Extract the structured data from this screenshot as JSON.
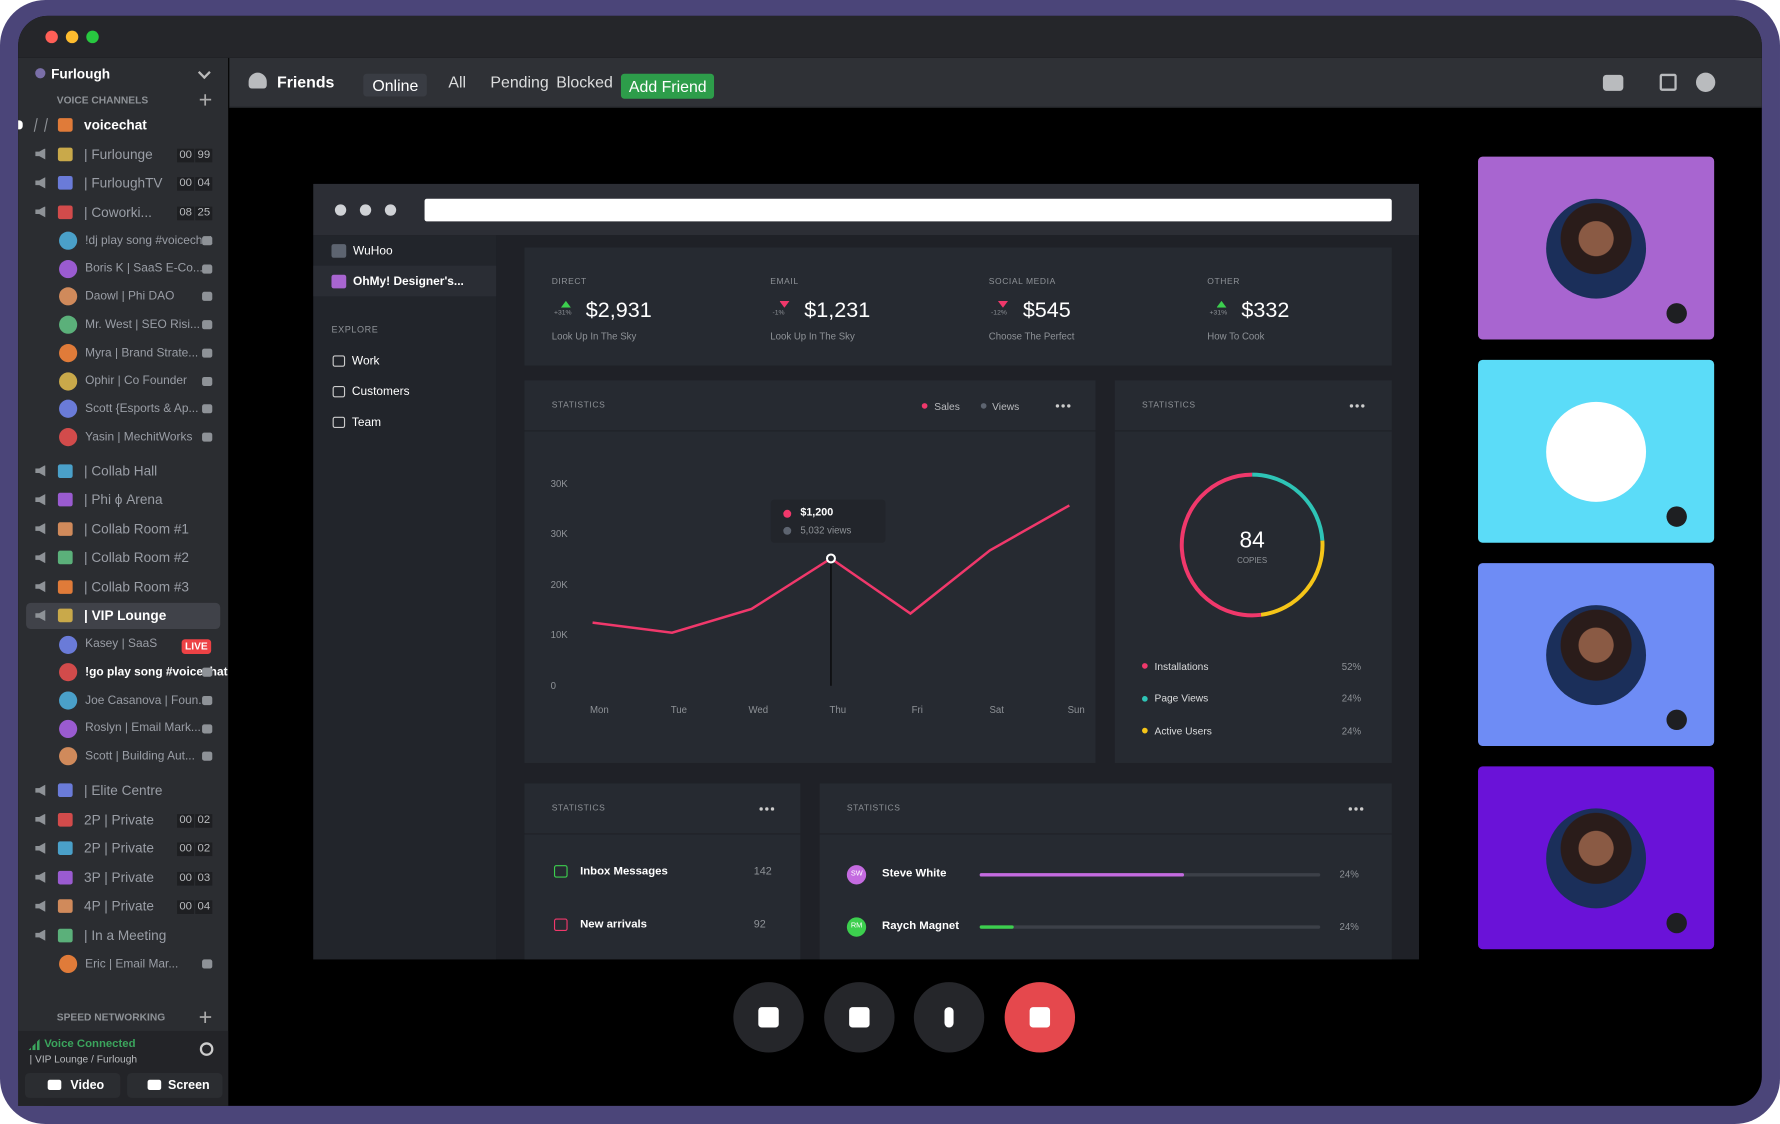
{
  "window": {
    "sidebar": {
      "server": "Furlough",
      "section": "VOICE CHANNELS",
      "groups": [
        [
          {
            "name": "voicechat",
            "text_channel": true
          },
          {
            "name": "| Furlounge",
            "counts": [
              "00",
              "99"
            ]
          },
          {
            "name": "| FurloughTV",
            "counts": [
              "00",
              "04"
            ]
          },
          {
            "name": "| Coworki...",
            "counts": [
              "08",
              "25"
            ],
            "members": [
              {
                "name": "!dj play song #voicechat"
              },
              {
                "name": "Boris K | SaaS E-Co..."
              },
              {
                "name": "Daowl | Phi DAO"
              },
              {
                "name": "Mr. West | SEO Risi..."
              },
              {
                "name": "Myra | Brand Strate..."
              },
              {
                "name": "Ophir | Co Founder"
              },
              {
                "name": "Scott {Esports & Ap..."
              },
              {
                "name": "Yasin | MechitWorks"
              }
            ]
          }
        ],
        [
          {
            "name": "| Collab Hall"
          },
          {
            "name": "| Phi ϕ Arena"
          },
          {
            "name": "| Collab Room #1"
          },
          {
            "name": "| Collab Room #2"
          },
          {
            "name": "| Collab Room #3"
          },
          {
            "name": "| VIP Lounge",
            "selected": true,
            "members": [
              {
                "name": "Kasey | SaaS",
                "badge": "LIVE"
              },
              {
                "name": "!go play song #voicechat",
                "highlight": true
              },
              {
                "name": "Joe Casanova | Foun..."
              },
              {
                "name": "Roslyn | Email Mark..."
              },
              {
                "name": "Scott | Building Aut..."
              }
            ]
          }
        ],
        [
          {
            "name": "| Elite Centre"
          },
          {
            "name": "2P | Private",
            "counts": [
              "00",
              "02"
            ]
          },
          {
            "name": "2P | Private",
            "counts": [
              "00",
              "02"
            ]
          },
          {
            "name": "3P | Private",
            "counts": [
              "00",
              "03"
            ]
          },
          {
            "name": "4P | Private",
            "counts": [
              "00",
              "04"
            ]
          },
          {
            "name": "| In a Meeting",
            "members": [
              {
                "name": "Eric | Email Mar..."
              }
            ]
          }
        ]
      ],
      "section2": "SPEED NETWORKING",
      "voice_status": "Voice Connected",
      "voice_channel": "| VIP Lounge / Furlough",
      "buttons": [
        "Video",
        "Screen"
      ]
    },
    "header": {
      "title": "Friends",
      "tabs": [
        "Online",
        "All",
        "Pending",
        "Blocked"
      ],
      "add_friend": "Add Friend"
    },
    "dashboard": {
      "sidebar": {
        "workspaces": [
          "WuHoo",
          "OhMy! Designer's..."
        ],
        "section": "EXPLORE",
        "links": [
          "Work",
          "Customers",
          "Team"
        ]
      },
      "cards": [
        {
          "label": "DIRECT",
          "change": "+31%",
          "value": "$2,931",
          "caption": "Look Up In The Sky"
        },
        {
          "label": "EMAIL",
          "change": "-1%",
          "value": "$1,231",
          "caption": "Look Up In The Sky"
        },
        {
          "label": "SOCIAL MEDIA",
          "change": "-12%",
          "value": "$545",
          "caption": "Choose The Perfect"
        },
        {
          "label": "OTHER",
          "change": "+31%",
          "value": "$332",
          "caption": "How To Cook"
        }
      ],
      "line_chart": {
        "type": "line",
        "title": "STATISTICS",
        "legend": [
          "Sales",
          "Views"
        ],
        "legend_colors": [
          "#f0386b",
          "#5d6470"
        ],
        "categories": [
          "Mon",
          "Tue",
          "Wed",
          "Thu",
          "Fri",
          "Sat",
          "Sun"
        ],
        "values": [
          12500,
          10500,
          15200,
          25200,
          14300,
          26800,
          35700
        ],
        "ylim": [
          0,
          40000
        ],
        "y_axis_labels": [
          "30K",
          "30K",
          "20K",
          "10K",
          "0"
        ],
        "color": "#f0386b",
        "tooltip": {
          "value": "$1,200",
          "detail": "5,032 views"
        }
      },
      "donut": {
        "type": "pie",
        "title": "STATISTICS",
        "center_value": "84",
        "center_label": "COPIES",
        "categories": [
          "Installations",
          "Page Views",
          "Active Users"
        ],
        "values": [
          52,
          24,
          24
        ],
        "value_labels": [
          "52%",
          "24%",
          "24%"
        ],
        "colors": [
          "#f0386b",
          "#2ec4b6",
          "#f5c518"
        ]
      },
      "messages": {
        "title": "STATISTICS",
        "rows": [
          {
            "label": "Inbox Messages",
            "count": 142
          },
          {
            "label": "New arrivals",
            "count": 92
          }
        ]
      },
      "people": {
        "title": "STATISTICS",
        "rows": [
          {
            "initials": "SW",
            "name": "Steve White",
            "percent": "24%",
            "color": "#c46be0"
          },
          {
            "initials": "RM",
            "name": "Raych Magnet",
            "percent": "24%",
            "color": "#3ccf4e"
          }
        ]
      }
    },
    "video_tiles": [
      {
        "color": "#a865d0"
      },
      {
        "color": "#5bdcf8"
      },
      {
        "color": "#6e8cf5"
      },
      {
        "color": "#6a12d8"
      }
    ]
  }
}
